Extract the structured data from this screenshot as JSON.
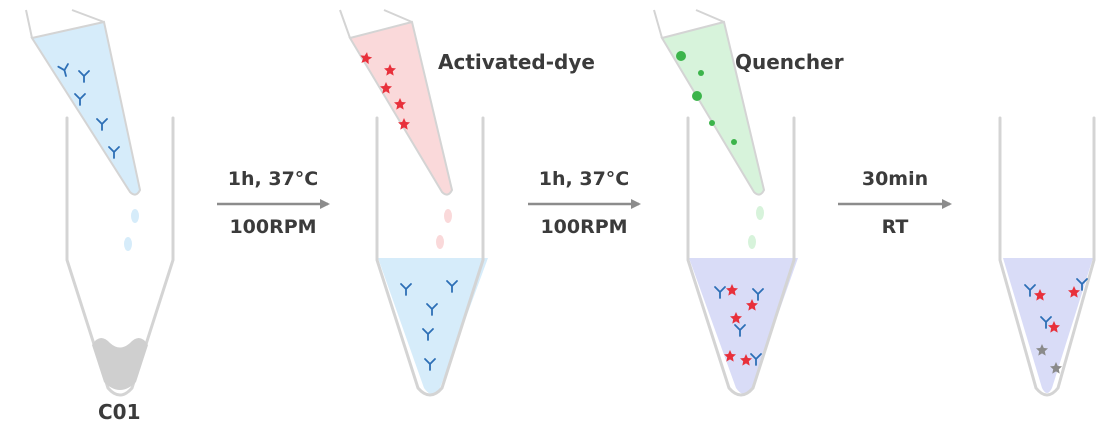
{
  "tubes": [
    {
      "label": "C01"
    },
    {
      "label": ""
    },
    {
      "label": ""
    },
    {
      "label": ""
    }
  ],
  "reagents": {
    "activated_dye": "Activated-dye",
    "quencher": "Quencher"
  },
  "steps": [
    {
      "top": "1h, 37°C",
      "bottom": "100RPM"
    },
    {
      "top": "1h, 37°C",
      "bottom": "100RPM"
    },
    {
      "top": "30min",
      "bottom": "RT"
    }
  ],
  "colors": {
    "tube_outline": "#d4d4d4",
    "pellet": "#cfcfcf",
    "blue_liquid": "#d6ecfa",
    "purple_liquid": "#d9dcf7",
    "red_tip": "#fad9da",
    "green_tip": "#d7f3db",
    "antibody": "#2d6fb6",
    "dye": "#e8303b",
    "quencher": "#3cb44b",
    "quenched_dye": "#8a8a8a",
    "arrow": "#8c8c8c"
  }
}
